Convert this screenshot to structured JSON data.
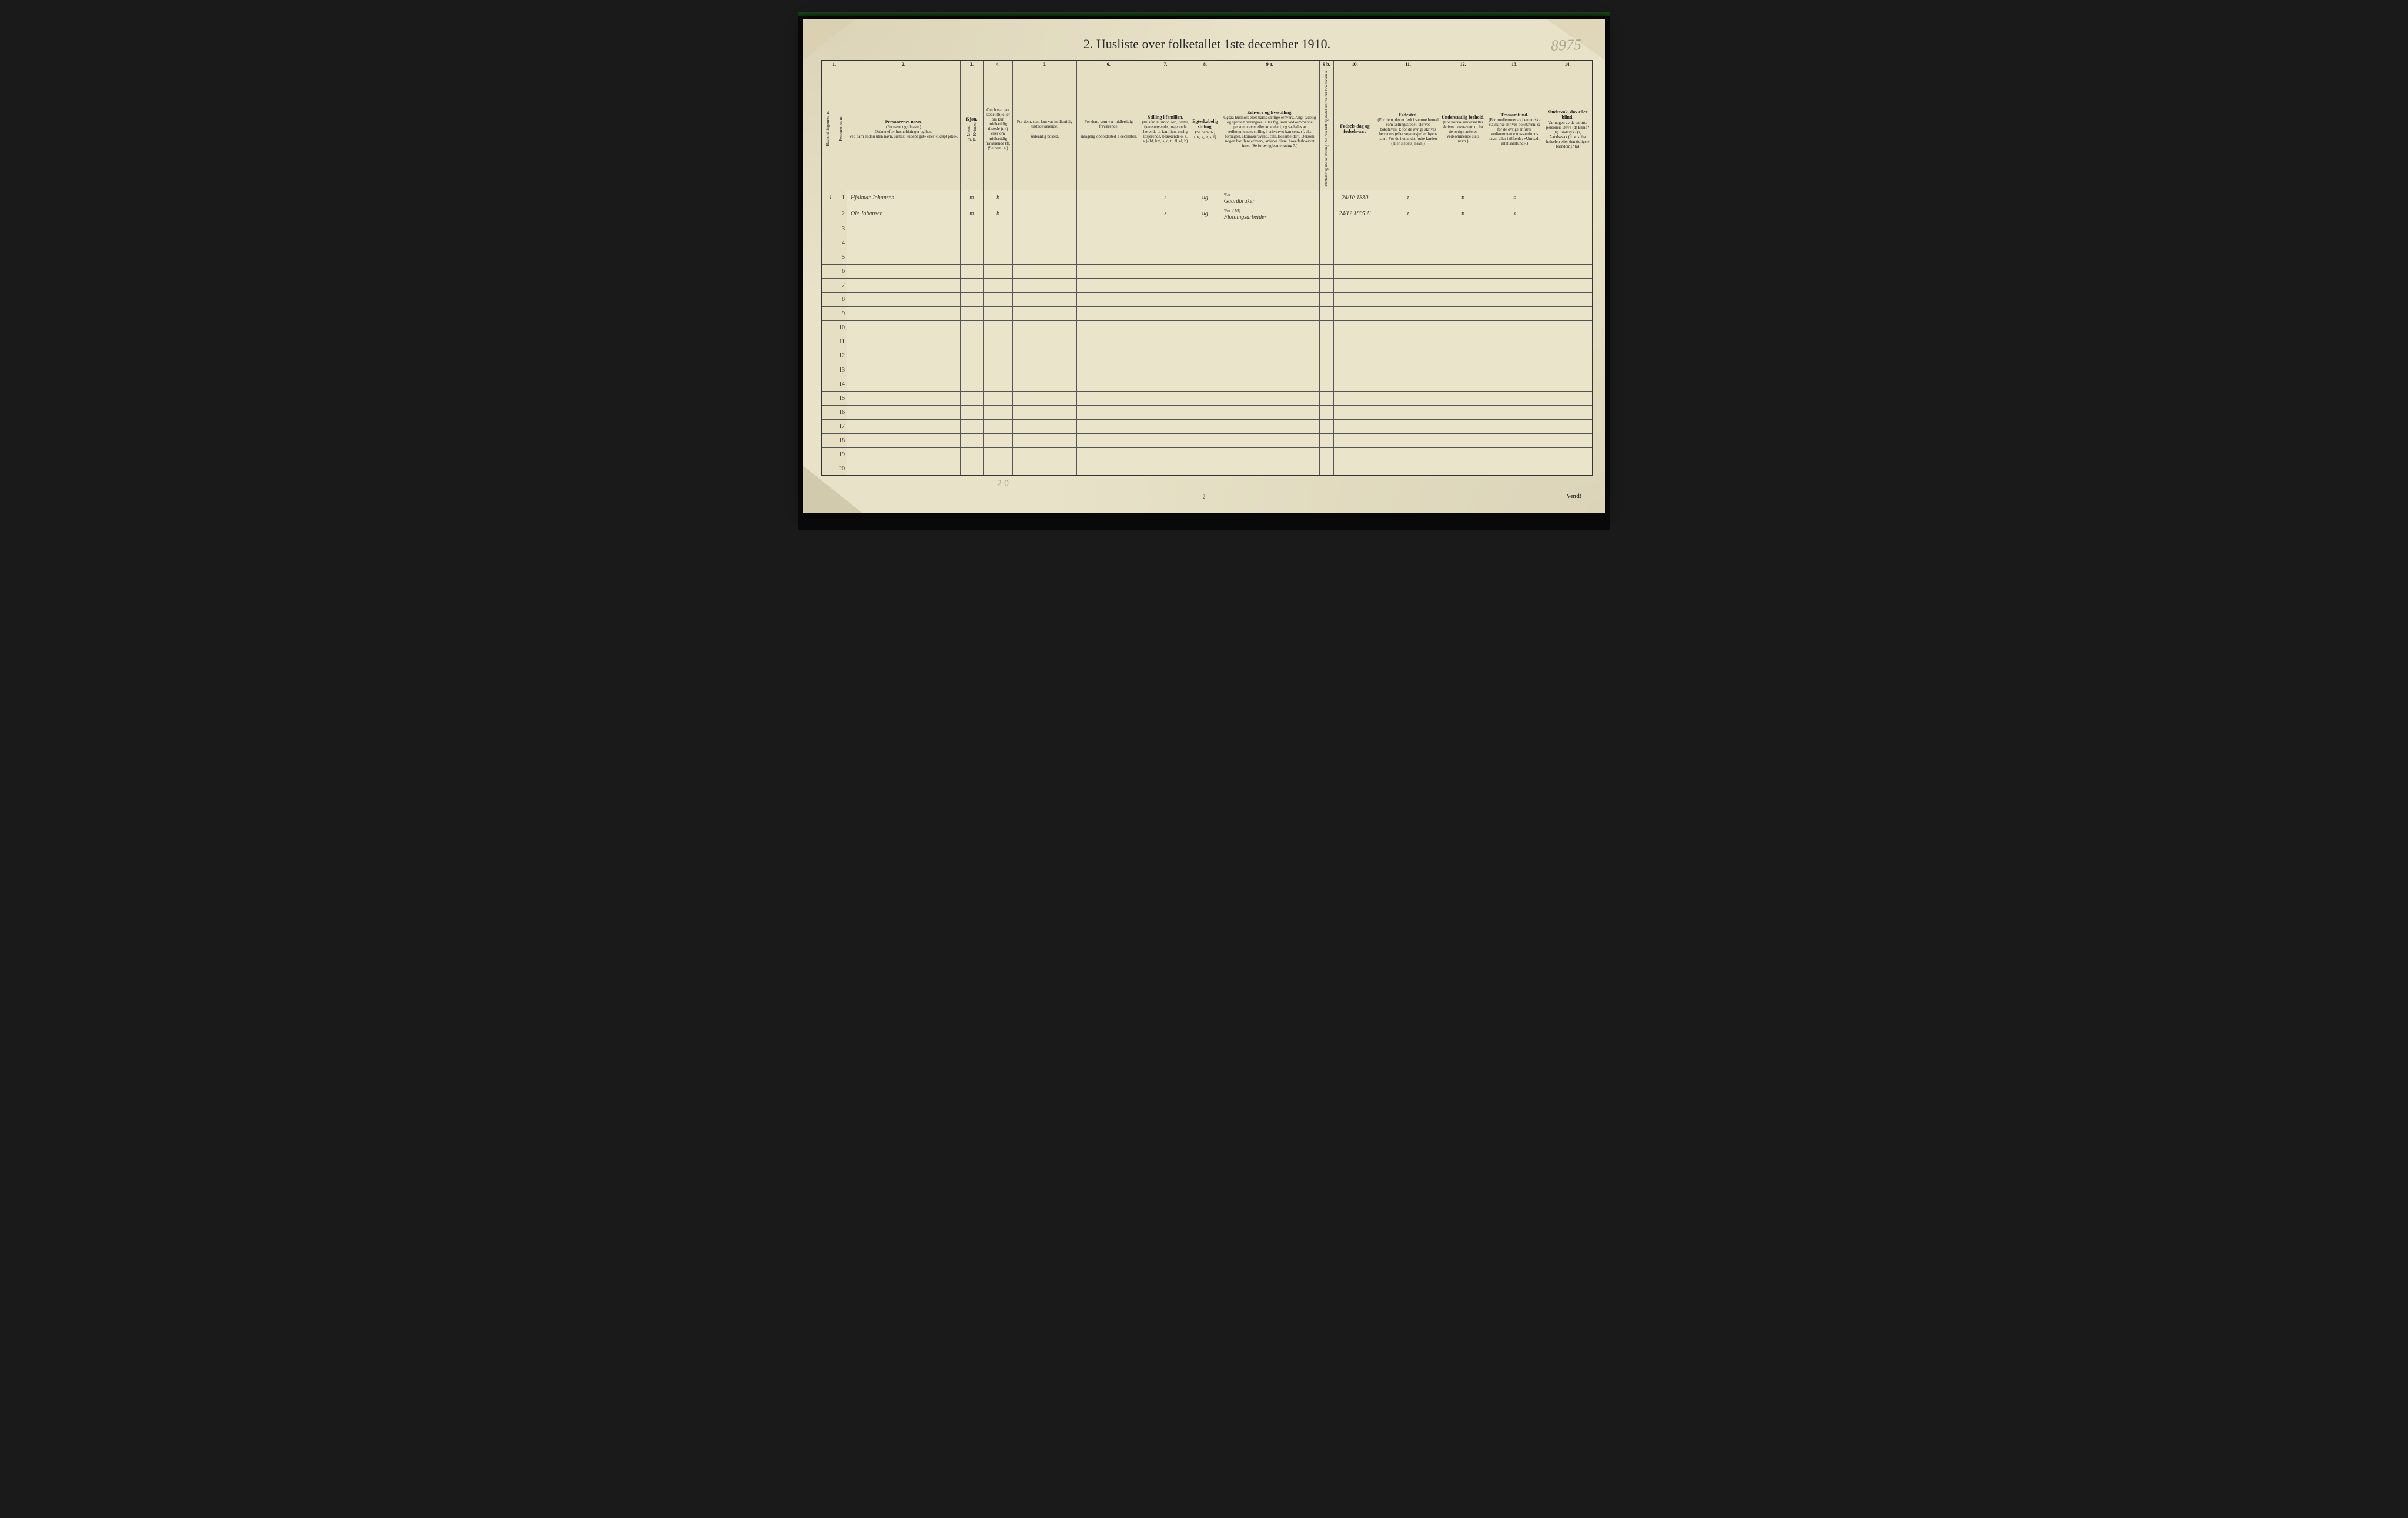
{
  "title": "2.  Husliste over folketallet 1ste december 1910.",
  "handwritten_corner": "8975",
  "columns": {
    "nums": [
      "1.",
      "2.",
      "3.",
      "4.",
      "5.",
      "6.",
      "7.",
      "8.",
      "9 a.",
      "9 b.",
      "10.",
      "11.",
      "12.",
      "13.",
      "14."
    ],
    "h1_v1": "Husholdningernes nr.",
    "h1_v2": "Personernes nr.",
    "h2_title": "Personernes navn.",
    "h2_sub": "(Fornavn og tilnavn.)",
    "h2_note1": "Ordnet efter husholdninger og hus.",
    "h2_note2": "Ved barn endnu uten navn, sættes: «udøpt gut» eller «udøpt pike».",
    "h3_title": "Kjøn.",
    "h3_m": "Mænd.",
    "h3_k": "Kvinder.",
    "h3_mk": "m.  k.",
    "h4_text": "Om bosat paa stedet (b) eller om kun midlertidig tilstede (mt) eller om midlertidig fraværende (f). (Se bem. 4.)",
    "h5_title": "For dem, som kun var midlertidig tilstedeværende:",
    "h5_sub": "sedvanlig bosted.",
    "h6_title": "For dem, som var midlertidig fraværende:",
    "h6_sub": "antagelig opholdssted 1 december.",
    "h7_title": "Stilling i familien.",
    "h7_sub": "(Husfar, husmor, søn, datter, tjenestetyende, losjerende hørende til familien, enslig losjerende, besøkende o. s. v.) (hf, hm, s, d, tj, fl, el, b)",
    "h8_title": "Egteskabelig stilling.",
    "h8_sub": "(Se bem. 6.) (ug, g, e, s, f)",
    "h9a_title": "Erhverv og livsstilling.",
    "h9a_sub": "Ogsaa husmors eller barns særlige erhverv. Angi tydelig og specielt næringsvei eller fag, som vedkommende person utøver eller arbeider i, og saaledes at vedkommendes stilling i erhvervet kan sees, (f. eks. forpagter, skomakersvend, cellulosearbeider). Dersom nogen har flere erhverv, anføres disse, hovederhvervet først. (Se forøvrig bemerkning 7.)",
    "h9b_v": "Midlertidig ute av stilling? Se paa tællingstedet sættes her bokstaven a.",
    "h10_title": "Fødsels-dag og fødsels-aar.",
    "h11_title": "Fødested.",
    "h11_sub": "(For dem, der er født i samme herred som tællingsstedet, skrives bokstaven: t; for de øvrige skrives herredets (eller sognets) eller byens navn. For de i utlandet fødte landets (eller stedets) navn.)",
    "h12_title": "Undersaatlig forhold.",
    "h12_sub": "(For norske undersaatter skrives bokstaven: n; for de øvrige anføres vedkommende stats navn.)",
    "h13_title": "Trossamfund.",
    "h13_sub": "(For medlemmer av den norske statskirke skrives bokstaven: s; for de øvrige anføres vedkommende trossamfunds navn, eller i tilfælde: «Uttraadt, intet samfund».)",
    "h14_title": "Sindssvak, døv eller blind.",
    "h14_sub": "Var nogen av de anførte personer: Døv? (d) Blind? (b) Sindssyk? (s) Aandssvak (d. v. s. fra fødselen eller den tidligste barndom)? (a)"
  },
  "rows": [
    {
      "hh": "1",
      "pn": "1",
      "name": "Hjalmar Johansen",
      "sex": "m",
      "res": "b",
      "c5": "",
      "c6": "",
      "famstatus": "s",
      "marital": "ug",
      "occupation": "Gaardbruker",
      "annot": "%o",
      "c9b": "",
      "birthdate": "24/10 1880",
      "birthplace": "t",
      "nationality": "n",
      "faith": "s",
      "c14": ""
    },
    {
      "hh": "",
      "pn": "2",
      "name": "Ole Johansen",
      "sex": "m",
      "res": "b",
      "c5": "",
      "c6": "",
      "famstatus": "s",
      "marital": "ug",
      "occupation": "Flötningsarbeider",
      "annot": "%o. (10)",
      "c9b": "",
      "birthdate": "24/12 1895 !!",
      "birthplace": "t",
      "nationality": "n",
      "faith": "s",
      "c14": ""
    }
  ],
  "total_rows": 20,
  "footer_pagenum": "2",
  "footer_vend": "Vend!",
  "pencil_note": "2 0",
  "colors": {
    "paper": "#e8e2c8",
    "ink": "#2a2a2a",
    "handwriting": "#3a3228",
    "border": "#333333"
  },
  "col_widths_pct": [
    1.8,
    1.8,
    16,
    1.6,
    1.6,
    4.2,
    9,
    9,
    7,
    4.2,
    14,
    2,
    6,
    9,
    6.5,
    8,
    7
  ]
}
